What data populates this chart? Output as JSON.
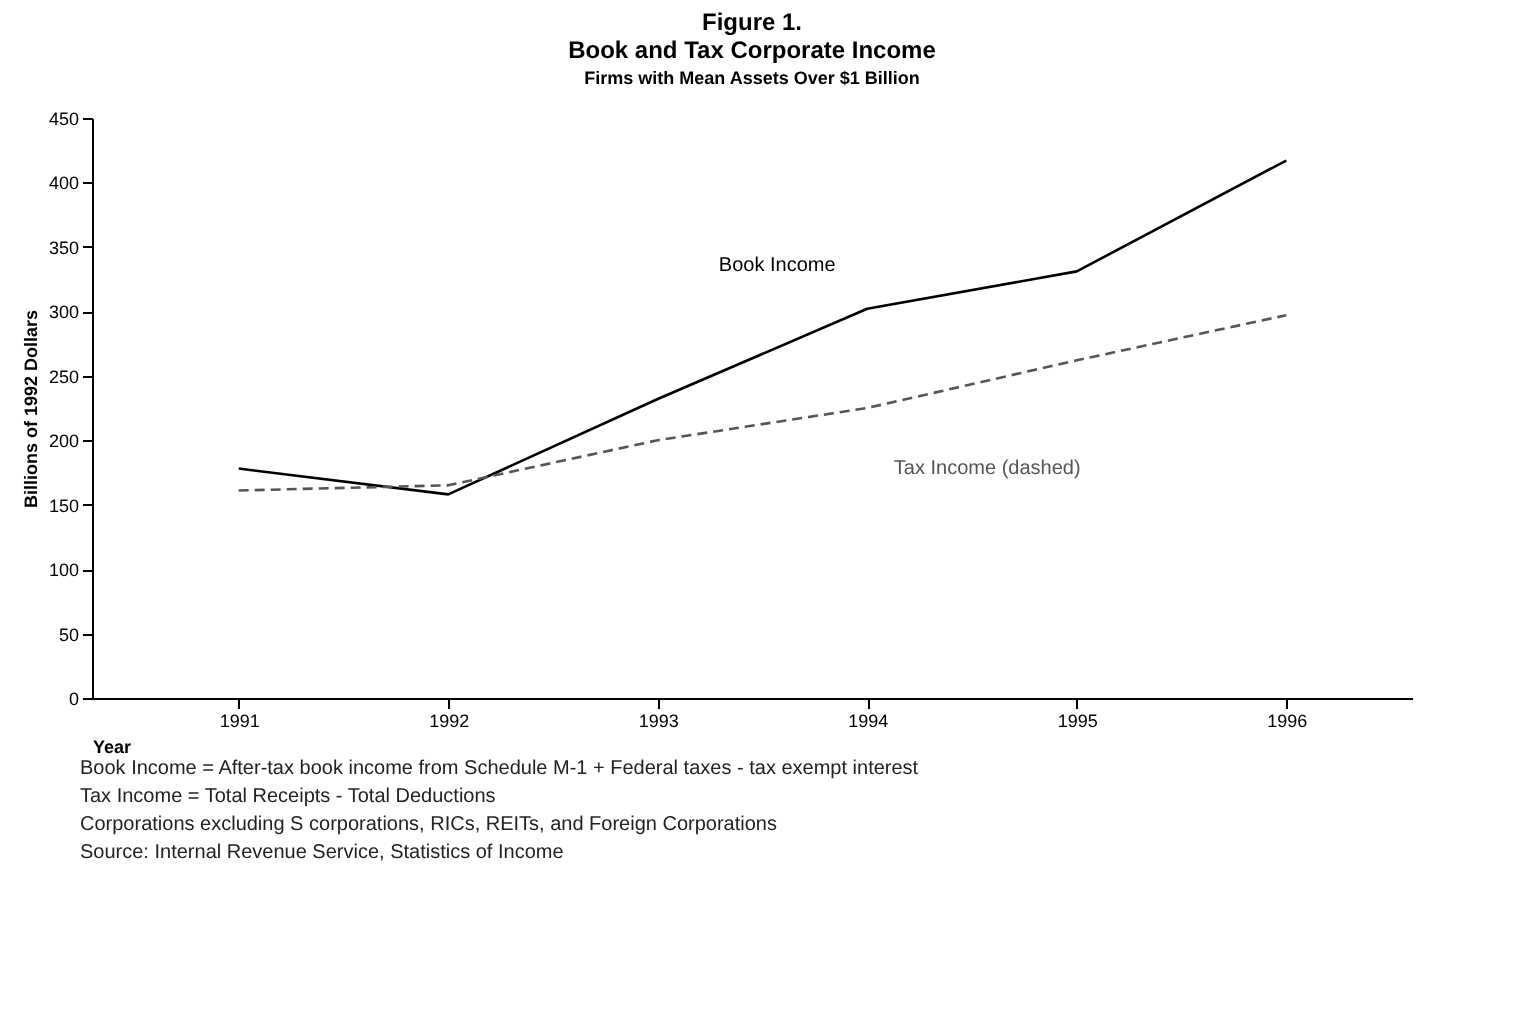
{
  "chart_data": {
    "type": "line",
    "title": "Figure 1.\nBook and Tax Corporate Income",
    "subtitle": "Firms with Mean Assets Over $1 Billion",
    "xlabel": "Year",
    "ylabel": "Billions of 1992 Dollars",
    "x": [
      1991,
      1992,
      1993,
      1994,
      1995,
      1996
    ],
    "series": [
      {
        "name": "Book Income",
        "color": "#000000",
        "line_style": "solid",
        "values": [
          178,
          158,
          232,
          302,
          331,
          417
        ]
      },
      {
        "name": "Tax Income (dashed)",
        "color": "#555555",
        "line_style": "dashed",
        "values": [
          161,
          165,
          200,
          225,
          262,
          297
        ]
      }
    ],
    "xlim": [
      1990.3,
      1996.6
    ],
    "xticks": [
      1991,
      1992,
      1993,
      1994,
      1995,
      1996
    ],
    "ylim": [
      0,
      450
    ],
    "yticks": [
      0,
      50,
      100,
      150,
      200,
      250,
      300,
      350,
      400,
      450
    ],
    "grid": false,
    "legend": false,
    "marker": "none",
    "annotations": [
      "Book Income = After-tax book income from Schedule M-1 + Federal taxes - tax exempt interest",
      "Tax Income = Total Receipts - Total Deductions",
      "Corporations excluding S corporations, RICs, REITs, and Foreign Corporations",
      "Source: Internal Revenue Service, Statistics of Income"
    ]
  }
}
